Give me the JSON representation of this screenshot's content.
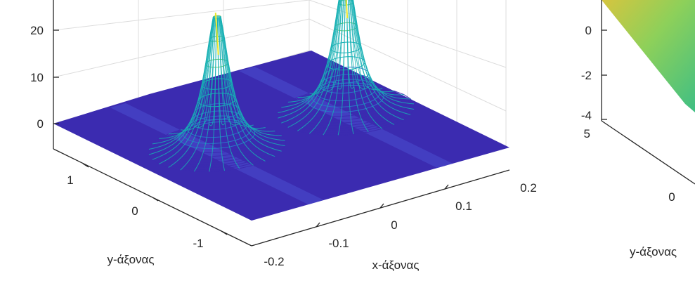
{
  "chart_data": [
    {
      "type": "surface",
      "xlabel": "x-άξονας",
      "ylabel": "y-άξονας",
      "xticks": [
        "-0.2",
        "-0.1",
        "0",
        "0.1",
        "0.2"
      ],
      "yticks": [
        "-1",
        "0",
        "1"
      ],
      "zticks": [
        "0",
        "10",
        "20"
      ],
      "xlim": [
        -0.2,
        0.2
      ],
      "ylim": [
        -1.5,
        1.5
      ],
      "zlim": [
        -5,
        30
      ],
      "peaks": [
        {
          "x": -0.1,
          "y": 0.0,
          "z": 30
        },
        {
          "x": 0.1,
          "y": 0.0,
          "z": 30
        }
      ],
      "colormap": [
        "#3b2bb0",
        "#2c72c9",
        "#16b0b4",
        "#60cc6a",
        "#e9e62c"
      ],
      "grid": true
    },
    {
      "type": "surface",
      "ylabel": "y-άξονας",
      "zticks": [
        "-4",
        "-2",
        "0"
      ],
      "yticks": [
        "5",
        "0"
      ],
      "colormap": [
        "#3fbf84",
        "#8dd05a",
        "#d6c53f"
      ],
      "grid": true
    }
  ]
}
